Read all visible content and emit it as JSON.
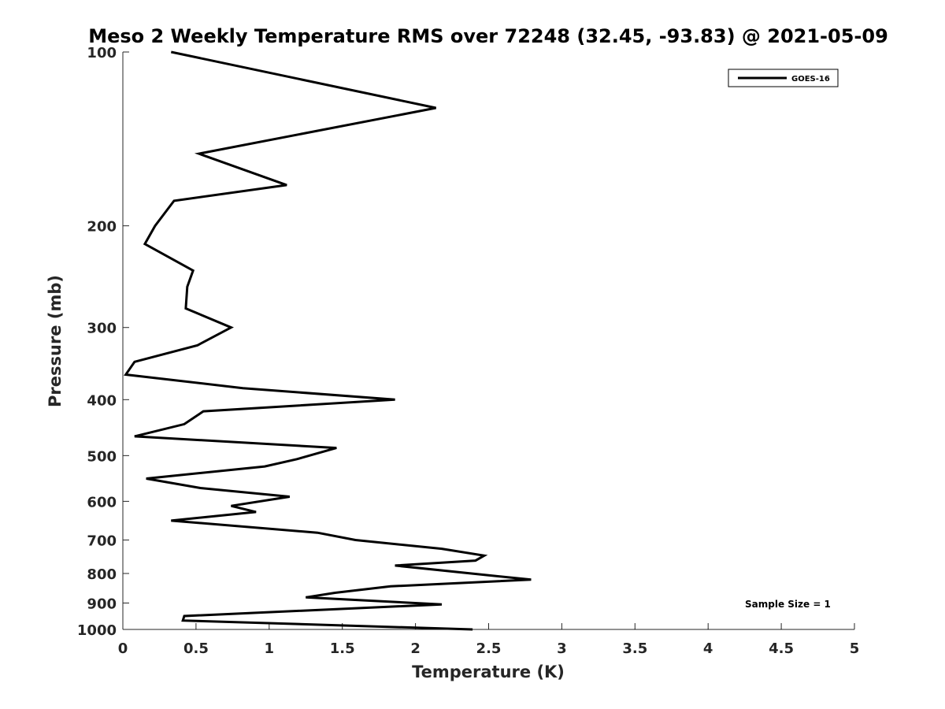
{
  "chart_data": {
    "type": "line",
    "title": "Meso 2 Weekly Temperature RMS over 72248 (32.45, -93.83) @ 2021-05-09",
    "xlabel": "Temperature (K)",
    "ylabel": "Pressure (mb)",
    "xlim": [
      0,
      5
    ],
    "ylim": [
      100,
      1000
    ],
    "y_scale": "log",
    "y_reversed": true,
    "x_ticks": [
      "0",
      "0.5",
      "1",
      "1.5",
      "2",
      "2.5",
      "3",
      "3.5",
      "4",
      "4.5",
      "5"
    ],
    "y_ticks": [
      "100",
      "200",
      "300",
      "400",
      "500",
      "600",
      "700",
      "800",
      "900",
      "1000"
    ],
    "grid": false,
    "legend_position": "top-right",
    "annotation": "Sample Size = 1",
    "series": [
      {
        "name": "GOES-16",
        "color": "#000000",
        "points": [
          [
            0.33,
            100
          ],
          [
            2.14,
            125
          ],
          [
            0.52,
            150
          ],
          [
            1.12,
            170
          ],
          [
            0.35,
            181
          ],
          [
            0.22,
            200
          ],
          [
            0.15,
            215
          ],
          [
            0.48,
            239
          ],
          [
            0.44,
            255
          ],
          [
            0.43,
            278
          ],
          [
            0.74,
            300
          ],
          [
            0.51,
            322
          ],
          [
            0.08,
            344
          ],
          [
            0.02,
            362
          ],
          [
            0.82,
            382
          ],
          [
            1.86,
            400
          ],
          [
            0.55,
            419
          ],
          [
            0.42,
            441
          ],
          [
            0.08,
            463
          ],
          [
            1.46,
            485
          ],
          [
            1.19,
            507
          ],
          [
            0.97,
            522
          ],
          [
            0.16,
            548
          ],
          [
            0.53,
            569
          ],
          [
            1.14,
            589
          ],
          [
            0.74,
            611
          ],
          [
            0.91,
            626
          ],
          [
            0.33,
            648
          ],
          [
            1.33,
            680
          ],
          [
            1.59,
            700
          ],
          [
            2.18,
            725
          ],
          [
            2.47,
            745
          ],
          [
            2.41,
            760
          ],
          [
            1.86,
            775
          ],
          [
            2.79,
            820
          ],
          [
            1.83,
            842
          ],
          [
            1.45,
            864
          ],
          [
            1.25,
            880
          ],
          [
            2.18,
            905
          ],
          [
            0.42,
            948
          ],
          [
            0.41,
            965
          ],
          [
            2.39,
            1000
          ]
        ]
      }
    ]
  }
}
